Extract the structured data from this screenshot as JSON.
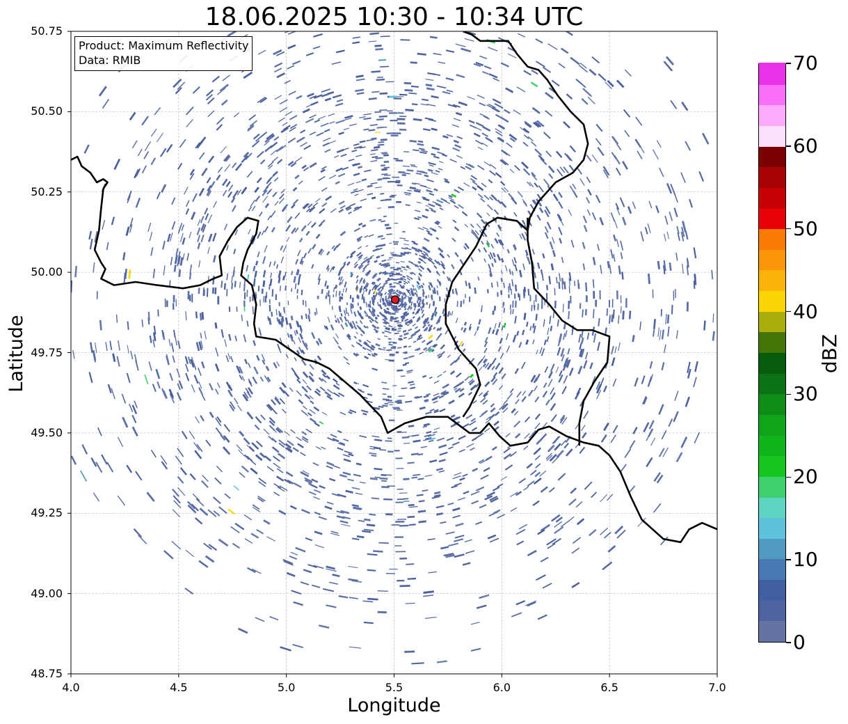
{
  "title": "18.06.2025 10:30 - 10:34 UTC",
  "xlabel": "Longitude",
  "ylabel": "Latitude",
  "x_ticks": [
    "4.0",
    "4.5",
    "5.0",
    "5.5",
    "6.0",
    "6.5",
    "7.0"
  ],
  "y_ticks": [
    "50.75",
    "50.50",
    "50.25",
    "50.00",
    "49.75",
    "49.50",
    "49.25",
    "49.00",
    "48.75"
  ],
  "info_box": {
    "product": "Product: Maximum Reflectivity",
    "data_source": "Data: RMIB"
  },
  "colorbar": {
    "label": "dBZ",
    "tick_labels": [
      "0",
      "10",
      "20",
      "30",
      "40",
      "50",
      "60",
      "70"
    ],
    "range": [
      0,
      70
    ],
    "colors": [
      "#6573a3",
      "#4e63a0",
      "#4060a3",
      "#4a7ab5",
      "#509ac2",
      "#5ec2dc",
      "#5cd6c3",
      "#3ed26e",
      "#15c621",
      "#10b41b",
      "#10a418",
      "#0f8c16",
      "#0b7313",
      "#065c0d",
      "#457507",
      "#a9ae0c",
      "#fbd607",
      "#fbb209",
      "#fb9608",
      "#fb7b07",
      "#e80106",
      "#c80104",
      "#a80103",
      "#7a0101",
      "#fde0fd",
      "#fcaafc",
      "#fb70fb",
      "#e833e8"
    ]
  },
  "map_data": {
    "type": "radar-reflectivity-map",
    "extent": {
      "lon": [
        4.0,
        7.0
      ],
      "lat": [
        48.75,
        50.75
      ]
    },
    "grid": true,
    "radar_site": {
      "lon": 5.505,
      "lat": 49.915,
      "color": "#e5141e"
    },
    "dominant_echo_color": "#5567a0",
    "borders": [
      [
        [
          4.0,
          50.35
        ],
        [
          4.03,
          50.36
        ],
        [
          4.05,
          50.33
        ],
        [
          4.09,
          50.31
        ],
        [
          4.12,
          50.28
        ],
        [
          4.15,
          50.29
        ],
        [
          4.17,
          50.28
        ],
        [
          4.15,
          50.26
        ],
        [
          4.14,
          50.2
        ],
        [
          4.13,
          50.13
        ],
        [
          4.11,
          50.07
        ],
        [
          4.14,
          50.03
        ],
        [
          4.16,
          50.01
        ],
        [
          4.14,
          49.98
        ],
        [
          4.2,
          49.96
        ],
        [
          4.3,
          49.97
        ],
        [
          4.4,
          49.96
        ],
        [
          4.52,
          49.95
        ],
        [
          4.6,
          49.96
        ],
        [
          4.66,
          49.98
        ],
        [
          4.7,
          49.99
        ],
        [
          4.69,
          50.05
        ],
        [
          4.73,
          50.1
        ],
        [
          4.77,
          50.14
        ],
        [
          4.82,
          50.17
        ],
        [
          4.87,
          50.16
        ],
        [
          4.86,
          50.12
        ],
        [
          4.82,
          50.07
        ],
        [
          4.8,
          50.03
        ],
        [
          4.79,
          49.99
        ],
        [
          4.84,
          49.96
        ],
        [
          4.86,
          49.9
        ],
        [
          4.85,
          49.84
        ],
        [
          4.86,
          49.8
        ],
        [
          4.95,
          49.79
        ],
        [
          5.08,
          49.73
        ],
        [
          5.14,
          49.72
        ],
        [
          5.2,
          49.7
        ],
        [
          5.34,
          49.62
        ],
        [
          5.44,
          49.55
        ],
        [
          5.47,
          49.5
        ],
        [
          5.55,
          49.53
        ],
        [
          5.65,
          49.55
        ],
        [
          5.75,
          49.55
        ],
        [
          5.85,
          49.5
        ],
        [
          5.9,
          49.5
        ],
        [
          5.94,
          49.53
        ],
        [
          5.99,
          49.49
        ],
        [
          6.04,
          49.46
        ],
        [
          6.12,
          49.47
        ],
        [
          6.17,
          49.51
        ],
        [
          6.22,
          49.52
        ],
        [
          6.3,
          49.49
        ],
        [
          6.38,
          49.47
        ],
        [
          6.45,
          49.46
        ],
        [
          6.5,
          49.43
        ],
        [
          6.55,
          49.38
        ],
        [
          6.6,
          49.3
        ],
        [
          6.65,
          49.23
        ],
        [
          6.7,
          49.2
        ],
        [
          6.75,
          49.17
        ],
        [
          6.83,
          49.16
        ],
        [
          6.87,
          49.2
        ],
        [
          6.93,
          49.22
        ],
        [
          7.0,
          49.2
        ]
      ],
      [
        [
          5.82,
          50.75
        ],
        [
          5.86,
          50.74
        ],
        [
          5.9,
          50.72
        ],
        [
          5.97,
          50.72
        ],
        [
          6.03,
          50.72
        ],
        [
          6.07,
          50.68
        ],
        [
          6.12,
          50.64
        ],
        [
          6.17,
          50.63
        ],
        [
          6.21,
          50.6
        ],
        [
          6.26,
          50.55
        ],
        [
          6.32,
          50.5
        ],
        [
          6.38,
          50.46
        ],
        [
          6.4,
          50.4
        ],
        [
          6.38,
          50.35
        ],
        [
          6.33,
          50.31
        ],
        [
          6.25,
          50.28
        ],
        [
          6.17,
          50.22
        ],
        [
          6.13,
          50.17
        ],
        [
          6.12,
          50.13
        ],
        [
          6.07,
          50.16
        ],
        [
          5.98,
          50.17
        ],
        [
          5.93,
          50.15
        ],
        [
          5.88,
          50.08
        ],
        [
          5.82,
          50.02
        ],
        [
          5.77,
          49.97
        ],
        [
          5.74,
          49.9
        ],
        [
          5.74,
          49.84
        ],
        [
          5.8,
          49.76
        ],
        [
          5.88,
          49.7
        ],
        [
          5.9,
          49.65
        ],
        [
          5.85,
          49.58
        ],
        [
          5.82,
          49.55
        ]
      ],
      [
        [
          6.12,
          50.17
        ],
        [
          6.12,
          50.1
        ],
        [
          6.14,
          50.03
        ],
        [
          6.15,
          49.95
        ],
        [
          6.22,
          49.9
        ],
        [
          6.28,
          49.85
        ],
        [
          6.35,
          49.82
        ],
        [
          6.42,
          49.82
        ],
        [
          6.5,
          49.8
        ],
        [
          6.49,
          49.72
        ],
        [
          6.43,
          49.66
        ],
        [
          6.38,
          49.6
        ],
        [
          6.36,
          49.53
        ],
        [
          6.36,
          49.46
        ]
      ]
    ]
  }
}
